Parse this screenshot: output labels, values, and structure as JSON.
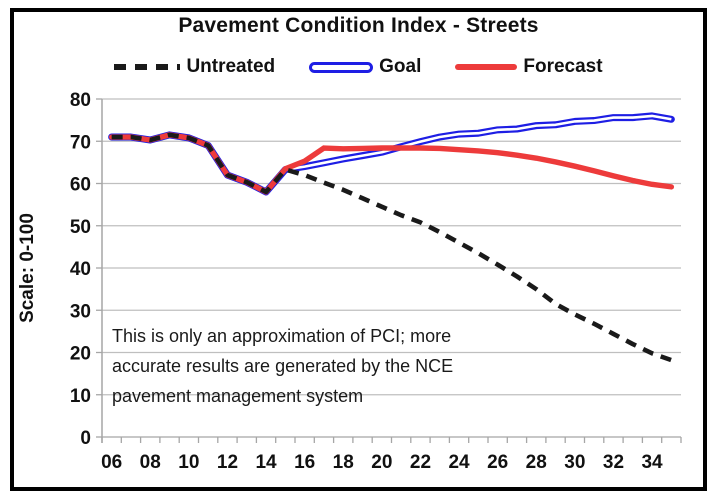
{
  "chart_data": {
    "type": "line",
    "title": "Pavement Condition Index - Streets",
    "ylabel": "Scale: 0-100",
    "xlabel": "",
    "ylim": [
      0,
      80
    ],
    "ytick_step": 10,
    "grid": "horizontal",
    "legend_position": "top",
    "categories": [
      "06",
      "07",
      "08",
      "09",
      "10",
      "11",
      "12",
      "13",
      "14",
      "15",
      "16",
      "17",
      "18",
      "19",
      "20",
      "21",
      "22",
      "23",
      "24",
      "25",
      "26",
      "27",
      "28",
      "29",
      "30",
      "31",
      "32",
      "33",
      "34",
      "35"
    ],
    "xtick_label_interval": 2,
    "series": [
      {
        "name": "Untreated",
        "style": "dashed",
        "color": "#1a1a1a",
        "values": [
          71,
          71,
          70.3,
          71.5,
          70.8,
          69,
          62,
          60.3,
          58,
          63.3,
          62,
          60.2,
          58.5,
          56.5,
          54.5,
          52.5,
          50.8,
          48.5,
          46,
          43.5,
          40.8,
          38,
          35,
          31.5,
          29,
          26.8,
          24.4,
          22,
          19.8,
          18.2
        ]
      },
      {
        "name": "Goal",
        "style": "double",
        "color": "#1e1ee4",
        "values": [
          71,
          71,
          70.3,
          71.5,
          70.8,
          69,
          62,
          60.3,
          58,
          63.3,
          64,
          64.9,
          65.8,
          66.6,
          67.4,
          68.7,
          69.9,
          71,
          71.7,
          71.9,
          72.7,
          72.9,
          73.7,
          73.9,
          74.7,
          74.9,
          75.6,
          75.6,
          76,
          75.2
        ]
      },
      {
        "name": "Forecast",
        "style": "solid",
        "color": "#ed3b3b",
        "values": [
          71,
          71,
          70.3,
          71.5,
          70.8,
          69,
          62,
          60.3,
          58,
          63.5,
          65.3,
          68.4,
          68.2,
          68.3,
          68.4,
          68.4,
          68.4,
          68.3,
          68,
          67.7,
          67.3,
          66.7,
          66,
          65.1,
          64.1,
          63,
          61.8,
          60.7,
          59.8,
          59.2
        ]
      }
    ],
    "annotation": {
      "lines": [
        "This is only an approximation of PCI; more",
        "accurate results are generated by the NCE",
        "pavement management system"
      ]
    },
    "colors": {
      "gridline": "#bfbfbf",
      "axis": "#a6a6a6",
      "text": "#111111",
      "border": "#000000"
    }
  }
}
